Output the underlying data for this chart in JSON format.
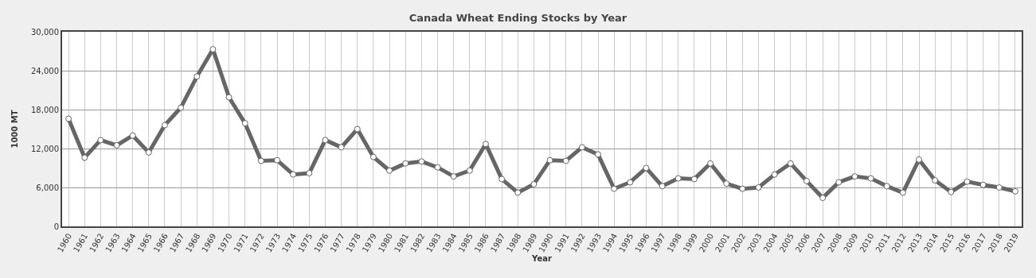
{
  "chart_data": {
    "type": "line",
    "title": "Canada Wheat Ending Stocks by Year",
    "xlabel": "Year",
    "ylabel": "1000 MT",
    "categories": [
      "1960",
      "1961",
      "1962",
      "1963",
      "1964",
      "1965",
      "1966",
      "1967",
      "1968",
      "1969",
      "1970",
      "1971",
      "1972",
      "1973",
      "1974",
      "1975",
      "1976",
      "1977",
      "1978",
      "1979",
      "1980",
      "1981",
      "1982",
      "1983",
      "1984",
      "1985",
      "1986",
      "1987",
      "1988",
      "1989",
      "1990",
      "1991",
      "1992",
      "1993",
      "1994",
      "1995",
      "1996",
      "1997",
      "1998",
      "1999",
      "2000",
      "2001",
      "2002",
      "2003",
      "2004",
      "2005",
      "2006",
      "2007",
      "2008",
      "2009",
      "2010",
      "2011",
      "2012",
      "2013",
      "2014",
      "2015",
      "2016",
      "2017",
      "2018",
      "2019"
    ],
    "series": [
      {
        "color": "#666666",
        "values": [
          16600,
          10600,
          13300,
          12500,
          14000,
          11400,
          15600,
          18300,
          23100,
          27300,
          19900,
          15900,
          10100,
          10200,
          8000,
          8200,
          13300,
          12200,
          15000,
          10700,
          8600,
          9700,
          10000,
          9100,
          7700,
          8600,
          12700,
          7300,
          5200,
          6500,
          10200,
          10100,
          12200,
          11100,
          5800,
          6800,
          9000,
          6200,
          7400,
          7300,
          9700,
          6600,
          5800,
          6000,
          8000,
          9700,
          7000,
          4400,
          6800,
          7700,
          7400,
          6200,
          5200,
          10300,
          7100,
          5300,
          6900,
          6400,
          6000,
          5400
        ]
      }
    ],
    "ylim": [
      0,
      30000
    ],
    "yticks": [
      0,
      {
        "value": 6000,
        "label": "6,000"
      },
      {
        "value": 12000,
        "label": "12,000"
      },
      {
        "value": 18000,
        "label": "18,000"
      },
      {
        "value": 24000,
        "label": "24,000"
      },
      {
        "value": 30000,
        "label": "30,000"
      }
    ],
    "grid": true,
    "marker": "circle",
    "line_style": "solid"
  }
}
